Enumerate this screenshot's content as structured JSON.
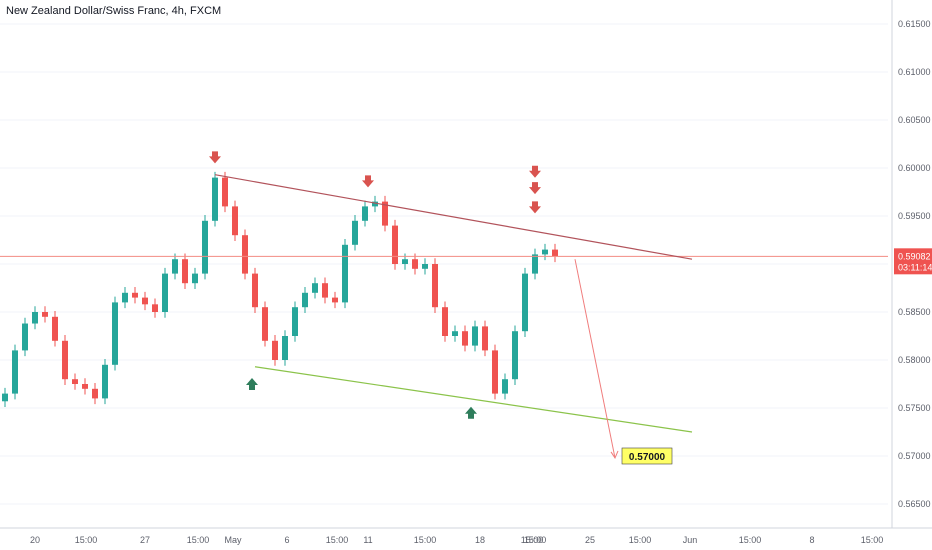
{
  "header": {
    "title": "New Zealand Dollar/Swiss Franc, 4h, FXCM"
  },
  "colors": {
    "up": "#26a69a",
    "down": "#ef5350",
    "resistance": "#b2535b",
    "support": "#8bc34a",
    "horizontal": "#f28b82",
    "projection": "#f07c7c",
    "down_arrow": "#d9534f",
    "up_arrow": "#2e7d5b",
    "price_tag": "#ef5350",
    "target_bg": "#ffff66"
  },
  "chart_data": {
    "type": "candlestick",
    "symbol": "New Zealand Dollar/Swiss Franc",
    "timeframe": "4h",
    "source": "FXCM",
    "ylim": [
      0.5625,
      0.6175
    ],
    "y_ticks": [
      "0.61500",
      "0.61000",
      "0.60500",
      "0.60000",
      "0.59500",
      "0.59000",
      "0.58500",
      "0.58000",
      "0.57500",
      "0.57000",
      "0.56500"
    ],
    "x_ticks": [
      "20",
      "15:00",
      "27",
      "15:00",
      "May",
      "6",
      "15:00",
      "11",
      "15:00",
      "18",
      "15:00",
      "15:00",
      "25",
      "15:00",
      "Jun",
      "15:00",
      "8",
      "15:00"
    ],
    "series": [
      {
        "name": "close",
        "x": [
          0,
          10,
          20,
          30,
          40,
          50,
          60,
          70,
          80,
          90,
          100,
          110,
          120,
          130,
          140,
          150,
          160,
          170,
          180,
          190,
          200,
          210,
          220,
          230,
          240,
          250,
          260,
          270,
          280,
          290,
          300,
          310,
          320,
          330,
          340,
          350,
          360,
          370,
          380,
          390,
          400,
          410,
          420,
          430,
          440,
          450,
          460,
          470,
          480,
          490,
          500,
          510,
          520,
          530,
          540,
          550
        ],
        "values": [
          0.5765,
          0.581,
          0.5838,
          0.585,
          0.5845,
          0.582,
          0.578,
          0.5775,
          0.577,
          0.576,
          0.5795,
          0.586,
          0.587,
          0.5865,
          0.5858,
          0.585,
          0.589,
          0.5905,
          0.588,
          0.589,
          0.5945,
          0.599,
          0.596,
          0.593,
          0.589,
          0.5855,
          0.582,
          0.58,
          0.5825,
          0.5855,
          0.587,
          0.588,
          0.5865,
          0.586,
          0.592,
          0.5945,
          0.596,
          0.5965,
          0.594,
          0.59,
          0.5905,
          0.5895,
          0.59,
          0.5855,
          0.5825,
          0.583,
          0.5815,
          0.5835,
          0.581,
          0.5765,
          0.578,
          0.583,
          0.589,
          0.591,
          0.5915,
          0.5908
        ]
      }
    ],
    "levels": {
      "current_price": "0.59082",
      "countdown": "03:11:14",
      "target_label": "0.57000",
      "resistance_line": {
        "from": [
          215,
          0.5993
        ],
        "to": [
          692,
          0.5905
        ]
      },
      "support_line": {
        "from": [
          255,
          0.5793
        ],
        "to": [
          692,
          0.5725
        ]
      },
      "projection": {
        "from": [
          575,
          0.5905
        ],
        "to": [
          615,
          0.5698
        ]
      },
      "horizontal": 0.5908
    },
    "annotations": {
      "down_arrows": [
        [
          215,
          0.601
        ],
        [
          368,
          0.5985
        ],
        [
          535,
          0.5995
        ],
        [
          535,
          0.5978
        ],
        [
          535,
          0.5958
        ]
      ],
      "up_arrows": [
        [
          252,
          0.5775
        ],
        [
          471,
          0.5745
        ]
      ]
    }
  }
}
